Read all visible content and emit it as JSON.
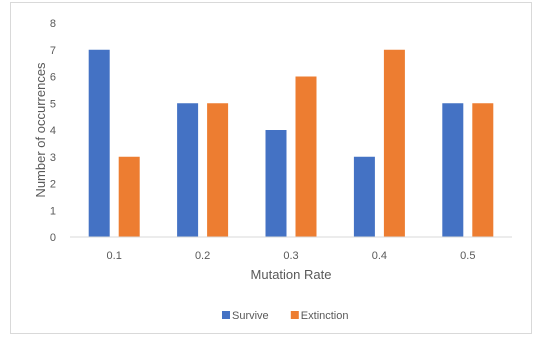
{
  "chart_data": {
    "type": "bar",
    "title": "",
    "xlabel": "Mutation Rate",
    "ylabel": "Number of occurrences",
    "categories": [
      "0.1",
      "0.2",
      "0.3",
      "0.4",
      "0.5"
    ],
    "series": [
      {
        "name": "Survive",
        "values": [
          7,
          5,
          4,
          3,
          5
        ],
        "color": "#4472c4"
      },
      {
        "name": "Extinction",
        "values": [
          3,
          5,
          6,
          7,
          5
        ],
        "color": "#ed7d31"
      }
    ],
    "ylim": [
      0,
      8
    ],
    "yticks": [
      "0",
      "1",
      "2",
      "3",
      "4",
      "5",
      "6",
      "7",
      "8"
    ],
    "grid": false,
    "legend": "bottom"
  }
}
